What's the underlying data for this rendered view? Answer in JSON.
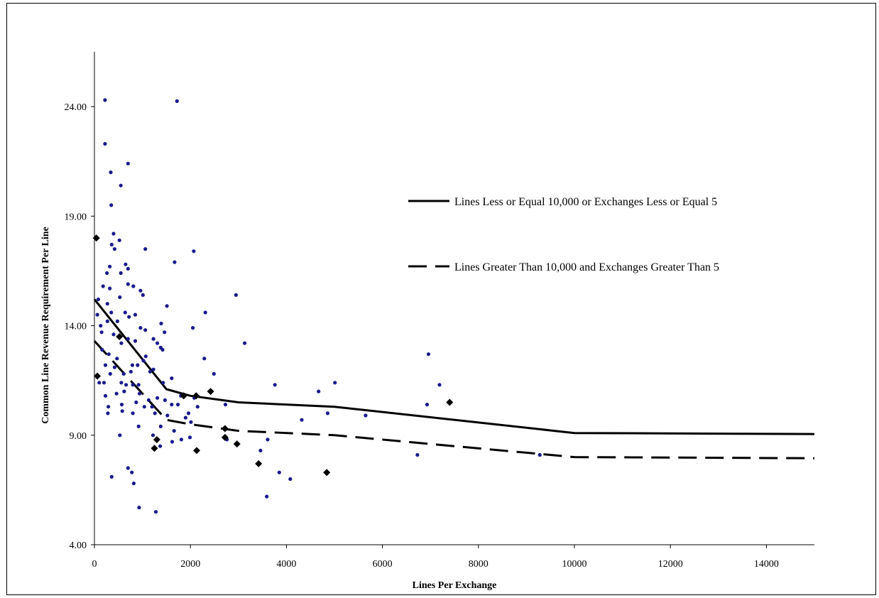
{
  "chart_data": {
    "type": "scatter",
    "xlabel": "Lines Per Exchange",
    "ylabel": "Common Line Revenue Requirement  Per Line",
    "xlim": [
      0,
      15000
    ],
    "ylim": [
      4,
      26.5
    ],
    "x_ticks": [
      "0",
      "2000",
      "4000",
      "6000",
      "8000",
      "10000",
      "12000",
      "14000"
    ],
    "x_tick_values": [
      0,
      2000,
      4000,
      6000,
      8000,
      10000,
      12000,
      14000
    ],
    "y_ticks": [
      "4.00",
      "9.00",
      "14.00",
      "19.00",
      "24.00"
    ],
    "y_tick_values": [
      4,
      9,
      14,
      19,
      24
    ],
    "grid": false,
    "legend_position": "right",
    "colors": {
      "dots": "#1a1a8c",
      "diamonds": "#000000",
      "lines": "#000000"
    },
    "lines": [
      {
        "name": "Lines Less or Equal 10,000 or Exchanges Less or Equal 5",
        "style": "solid",
        "x": [
          0,
          1500,
          2000,
          3000,
          5000,
          10000,
          15000
        ],
        "y": [
          15.2,
          11.1,
          10.8,
          10.5,
          10.3,
          9.1,
          9.05
        ]
      },
      {
        "name": "Lines Greater Than 10,000 and Exchanges Greater Than 5",
        "style": "dashed",
        "x": [
          0,
          1500,
          2000,
          3000,
          5000,
          10000,
          15000
        ],
        "y": [
          13.3,
          9.7,
          9.5,
          9.2,
          9.0,
          8.0,
          7.95
        ]
      }
    ],
    "scatter_series": [
      {
        "marker": "dot",
        "points": [
          [
            220,
            24.3
          ],
          [
            1720,
            24.25
          ],
          [
            220,
            22.3
          ],
          [
            700,
            21.4
          ],
          [
            340,
            21.0
          ],
          [
            550,
            20.4
          ],
          [
            350,
            19.5
          ],
          [
            400,
            18.2
          ],
          [
            520,
            17.9
          ],
          [
            360,
            17.7
          ],
          [
            420,
            17.5
          ],
          [
            1060,
            17.5
          ],
          [
            2070,
            17.4
          ],
          [
            650,
            16.8
          ],
          [
            320,
            16.7
          ],
          [
            1670,
            16.9
          ],
          [
            260,
            16.4
          ],
          [
            700,
            16.6
          ],
          [
            550,
            16.4
          ],
          [
            180,
            15.8
          ],
          [
            320,
            15.7
          ],
          [
            700,
            15.9
          ],
          [
            810,
            15.8
          ],
          [
            960,
            15.6
          ],
          [
            1010,
            15.4
          ],
          [
            2950,
            15.4
          ],
          [
            80,
            15.2
          ],
          [
            530,
            15.3
          ],
          [
            270,
            15.0
          ],
          [
            1510,
            14.9
          ],
          [
            60,
            14.5
          ],
          [
            350,
            14.6
          ],
          [
            640,
            14.6
          ],
          [
            720,
            14.4
          ],
          [
            850,
            14.5
          ],
          [
            2310,
            14.6
          ],
          [
            130,
            14.0
          ],
          [
            270,
            14.2
          ],
          [
            480,
            14.2
          ],
          [
            960,
            13.9
          ],
          [
            1060,
            13.8
          ],
          [
            1390,
            14.1
          ],
          [
            2050,
            13.9
          ],
          [
            150,
            13.7
          ],
          [
            400,
            13.6
          ],
          [
            560,
            13.2
          ],
          [
            700,
            13.4
          ],
          [
            850,
            13.3
          ],
          [
            1310,
            13.2
          ],
          [
            1460,
            13.7
          ],
          [
            1230,
            13.4
          ],
          [
            3130,
            13.2
          ],
          [
            160,
            12.9
          ],
          [
            300,
            12.7
          ],
          [
            470,
            12.5
          ],
          [
            1070,
            12.6
          ],
          [
            1380,
            13.0
          ],
          [
            1420,
            12.9
          ],
          [
            230,
            12.2
          ],
          [
            420,
            12.1
          ],
          [
            790,
            12.2
          ],
          [
            900,
            12.2
          ],
          [
            1020,
            12.4
          ],
          [
            2290,
            12.5
          ],
          [
            330,
            11.8
          ],
          [
            610,
            11.8
          ],
          [
            760,
            11.9
          ],
          [
            1160,
            11.9
          ],
          [
            1230,
            12.0
          ],
          [
            2490,
            11.8
          ],
          [
            100,
            11.4
          ],
          [
            200,
            11.4
          ],
          [
            560,
            11.4
          ],
          [
            660,
            11.3
          ],
          [
            800,
            11.3
          ],
          [
            920,
            11.3
          ],
          [
            1430,
            11.4
          ],
          [
            1610,
            11.6
          ],
          [
            3760,
            11.3
          ],
          [
            5010,
            11.4
          ],
          [
            7190,
            11.3
          ],
          [
            6960,
            12.7
          ],
          [
            230,
            10.8
          ],
          [
            460,
            10.9
          ],
          [
            620,
            11.0
          ],
          [
            940,
            10.9
          ],
          [
            1130,
            10.6
          ],
          [
            1310,
            10.7
          ],
          [
            1470,
            10.6
          ],
          [
            1800,
            10.8
          ],
          [
            2080,
            10.7
          ],
          [
            4670,
            11.0
          ],
          [
            290,
            10.3
          ],
          [
            570,
            10.4
          ],
          [
            870,
            10.5
          ],
          [
            1040,
            10.3
          ],
          [
            1200,
            10.3
          ],
          [
            1610,
            10.4
          ],
          [
            1740,
            10.4
          ],
          [
            2150,
            10.3
          ],
          [
            2730,
            10.4
          ],
          [
            6930,
            10.4
          ],
          [
            280,
            10.0
          ],
          [
            580,
            10.1
          ],
          [
            800,
            10.0
          ],
          [
            1260,
            10.0
          ],
          [
            1520,
            9.9
          ],
          [
            1960,
            10.0
          ],
          [
            5650,
            9.9
          ],
          [
            4860,
            10.0
          ],
          [
            1900,
            9.8
          ],
          [
            4320,
            9.7
          ],
          [
            2010,
            9.6
          ],
          [
            920,
            9.4
          ],
          [
            1380,
            9.4
          ],
          [
            1660,
            9.2
          ],
          [
            1220,
            9.0
          ],
          [
            530,
            9.0
          ],
          [
            1320,
            8.8
          ],
          [
            1990,
            8.9
          ],
          [
            2760,
            8.8
          ],
          [
            1810,
            8.8
          ],
          [
            1620,
            8.7
          ],
          [
            3610,
            8.8
          ],
          [
            1370,
            8.5
          ],
          [
            3460,
            8.3
          ],
          [
            6730,
            8.1
          ],
          [
            9280,
            8.1
          ],
          [
            700,
            7.5
          ],
          [
            780,
            7.3
          ],
          [
            3850,
            7.3
          ],
          [
            360,
            7.1
          ],
          [
            4080,
            7.0
          ],
          [
            820,
            6.8
          ],
          [
            3590,
            6.2
          ],
          [
            930,
            5.7
          ],
          [
            1280,
            5.5
          ]
        ]
      },
      {
        "marker": "diamond",
        "points": [
          [
            40,
            18.0
          ],
          [
            60,
            11.7
          ],
          [
            520,
            13.5
          ],
          [
            2420,
            11.0
          ],
          [
            2120,
            10.8
          ],
          [
            1860,
            10.8
          ],
          [
            7400,
            10.5
          ],
          [
            2720,
            9.3
          ],
          [
            1300,
            8.8
          ],
          [
            1250,
            8.4
          ],
          [
            2130,
            8.3
          ],
          [
            2720,
            8.9
          ],
          [
            2970,
            8.6
          ],
          [
            3420,
            7.7
          ],
          [
            4840,
            7.3
          ]
        ]
      }
    ]
  }
}
